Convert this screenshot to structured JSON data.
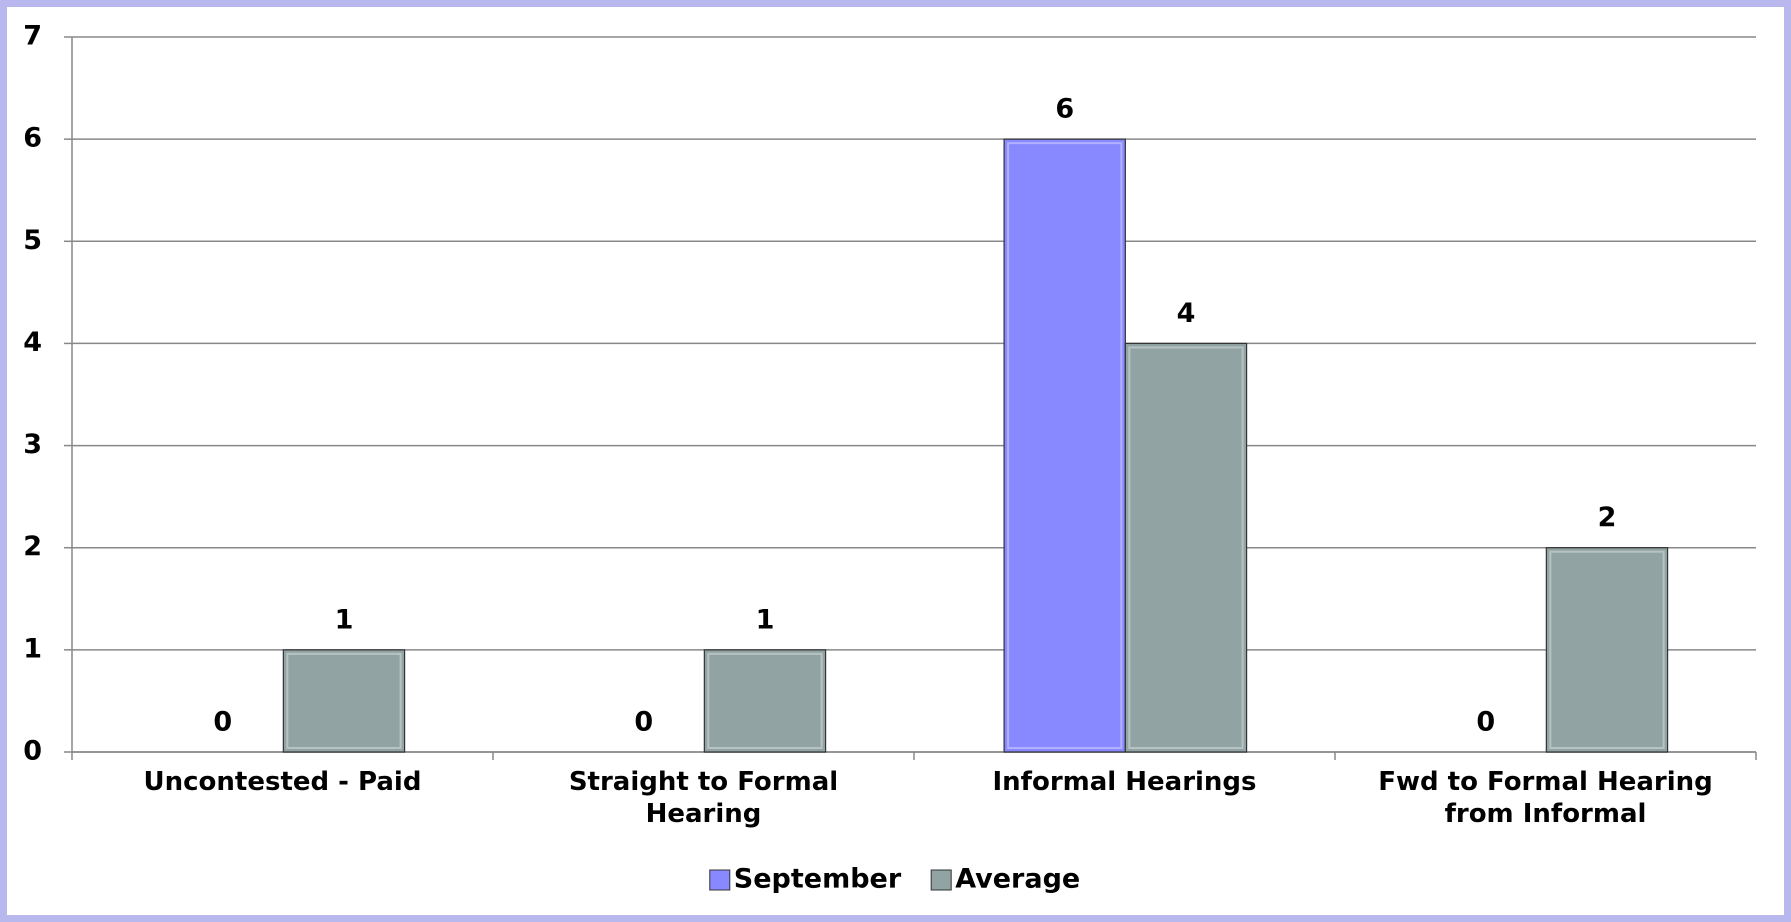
{
  "chart_data": {
    "type": "bar",
    "categories": [
      "Uncontested - Paid",
      "Straight to Formal Hearing",
      "Informal Hearings",
      "Fwd to Formal Hearing from Informal"
    ],
    "series": [
      {
        "name": "September",
        "color": "#8888ff",
        "values": [
          0,
          0,
          6,
          0
        ]
      },
      {
        "name": "Average",
        "color": "#91a3a3",
        "values": [
          1,
          1,
          4,
          2
        ]
      }
    ],
    "ylim": [
      0,
      7
    ],
    "yticks": [
      0,
      1,
      2,
      3,
      4,
      5,
      6,
      7
    ],
    "grid": true,
    "legend": "bottom"
  }
}
